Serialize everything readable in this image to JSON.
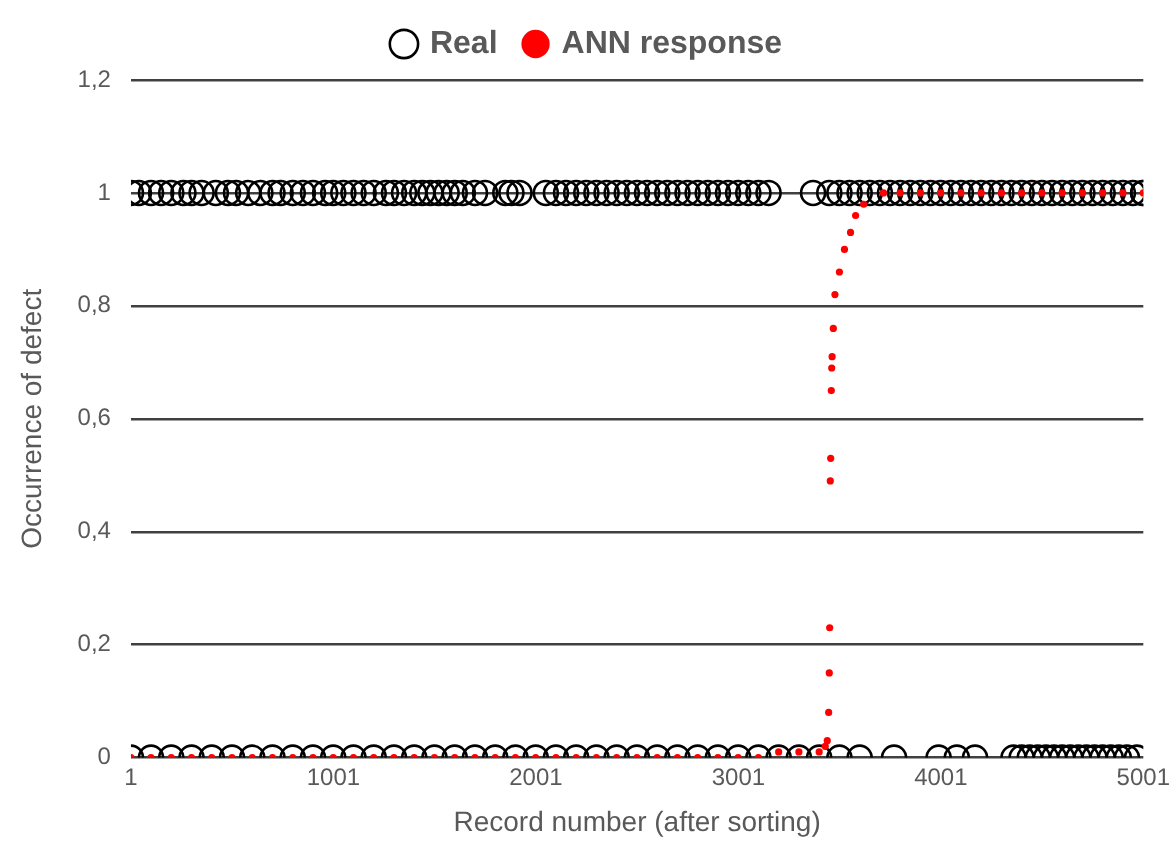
{
  "chart_data": {
    "type": "scatter",
    "xlabel": "Record number (after sorting)",
    "ylabel": "Occurrence of defect",
    "xlim": [
      1,
      5001
    ],
    "xticks": [
      1,
      1001,
      2001,
      3001,
      4001,
      5001
    ],
    "ylim": [
      0,
      1.2
    ],
    "yticks": [
      0,
      {
        "value": 0.2,
        "label": "0,2"
      },
      {
        "value": 0.4,
        "label": "0,4"
      },
      {
        "value": 0.6,
        "label": "0,6"
      },
      {
        "value": 0.8,
        "label": "0,8"
      },
      {
        "value": 1,
        "label": "1"
      },
      {
        "value": 1.2,
        "label": "1,2"
      }
    ],
    "grid": "y",
    "legend": "top",
    "marker": "circle",
    "series": [
      {
        "name": "Real",
        "color": "#000000",
        "x": [
          1,
          40,
          100,
          150,
          200,
          260,
          300,
          350,
          420,
          480,
          520,
          580,
          640,
          700,
          740,
          800,
          850,
          900,
          960,
          1000,
          1050,
          1100,
          1150,
          1200,
          1260,
          1300,
          1350,
          1400,
          1440,
          1480,
          1520,
          1560,
          1600,
          1640,
          1700,
          1750,
          1850,
          1880,
          1920,
          2050,
          2100,
          2150,
          2200,
          2250,
          2300,
          2350,
          2400,
          2450,
          2500,
          2550,
          2600,
          2650,
          2700,
          2750,
          2800,
          2850,
          2900,
          2950,
          3000,
          3050,
          3100,
          3150,
          3370,
          3450,
          3500,
          3550,
          3600,
          3650,
          3700,
          3750,
          3800,
          3850,
          3900,
          3950,
          4000,
          4050,
          4100,
          4150,
          4200,
          4250,
          4300,
          4350,
          4400,
          4450,
          4500,
          4550,
          4600,
          4650,
          4700,
          4750,
          4800,
          4850,
          4900,
          4950,
          5000,
          5001,
          1,
          100,
          200,
          300,
          400,
          500,
          600,
          700,
          800,
          900,
          1000,
          1100,
          1200,
          1300,
          1400,
          1500,
          1600,
          1700,
          1800,
          1900,
          2000,
          2100,
          2200,
          2300,
          2400,
          2500,
          2600,
          2700,
          2800,
          2900,
          3000,
          3100,
          3200,
          3300,
          3400,
          3500,
          3600,
          3770,
          3990,
          4080,
          4170,
          4360,
          4400,
          4440,
          4480,
          4520,
          4560,
          4600,
          4640,
          4680,
          4720,
          4760,
          4800,
          4840,
          4880,
          4920,
          4970
        ],
        "values": [
          1,
          1,
          1,
          1,
          1,
          1,
          1,
          1,
          1,
          1,
          1,
          1,
          1,
          1,
          1,
          1,
          1,
          1,
          1,
          1,
          1,
          1,
          1,
          1,
          1,
          1,
          1,
          1,
          1,
          1,
          1,
          1,
          1,
          1,
          1,
          1,
          1,
          1,
          1,
          1,
          1,
          1,
          1,
          1,
          1,
          1,
          1,
          1,
          1,
          1,
          1,
          1,
          1,
          1,
          1,
          1,
          1,
          1,
          1,
          1,
          1,
          1,
          1,
          1,
          1,
          1,
          1,
          1,
          1,
          1,
          1,
          1,
          1,
          1,
          1,
          1,
          1,
          1,
          1,
          1,
          1,
          1,
          1,
          1,
          1,
          1,
          1,
          1,
          1,
          1,
          1,
          1,
          1,
          1,
          1,
          1,
          0,
          0,
          0,
          0,
          0,
          0,
          0,
          0,
          0,
          0,
          0,
          0,
          0,
          0,
          0,
          0,
          0,
          0,
          0,
          0,
          0,
          0,
          0,
          0,
          0,
          0,
          0,
          0,
          0,
          0,
          0,
          0,
          0,
          0,
          0,
          0,
          0,
          0,
          0,
          0,
          0,
          0,
          0,
          0,
          0,
          0,
          0,
          0,
          0,
          0,
          0,
          0,
          0,
          0,
          0,
          0,
          0
        ]
      },
      {
        "name": "ANN response",
        "color": "#ff0000",
        "x": [
          1,
          100,
          200,
          300,
          400,
          500,
          600,
          700,
          800,
          900,
          1000,
          1100,
          1200,
          1300,
          1400,
          1500,
          1600,
          1700,
          1800,
          1900,
          2000,
          2100,
          2200,
          2300,
          2400,
          2500,
          2600,
          2700,
          2800,
          2900,
          3000,
          3100,
          3200,
          3300,
          3400,
          3430,
          3440,
          3447,
          3450,
          3452,
          3455,
          3457,
          3460,
          3462,
          3464,
          3470,
          3478,
          3500,
          3525,
          3555,
          3580,
          3620,
          3718,
          3800,
          3900,
          4000,
          4100,
          4200,
          4300,
          4400,
          4500,
          4600,
          4700,
          4800,
          4900,
          5001
        ],
        "values": [
          0,
          0,
          0,
          0,
          0,
          0,
          0,
          0,
          0,
          0,
          0,
          0,
          0,
          0,
          0,
          0,
          0,
          0,
          0,
          0,
          0,
          0,
          0,
          0,
          0,
          0,
          0,
          0,
          0,
          0,
          0,
          0,
          0.01,
          0.01,
          0.01,
          0.02,
          0.03,
          0.08,
          0.15,
          0.23,
          0.49,
          0.53,
          0.65,
          0.69,
          0.71,
          0.76,
          0.82,
          0.86,
          0.9,
          0.93,
          0.96,
          0.98,
          1,
          1,
          1,
          1,
          1,
          1,
          1,
          1,
          1,
          1,
          1,
          1,
          1,
          1
        ]
      }
    ]
  }
}
